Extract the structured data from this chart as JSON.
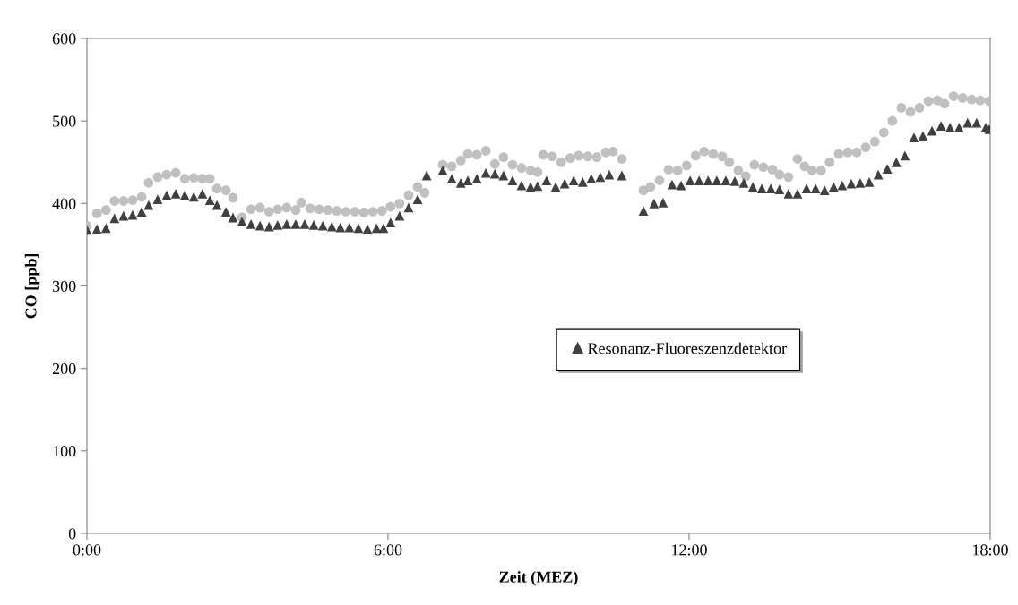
{
  "chart_data": {
    "type": "scatter",
    "xlabel": "Zeit (MEZ)",
    "ylabel": "CO [ppb]",
    "xlim": [
      0,
      18
    ],
    "xticks": [
      {
        "value": 0,
        "label": "0:00"
      },
      {
        "value": 6,
        "label": "6:00"
      },
      {
        "value": 12,
        "label": "12:00"
      },
      {
        "value": 18,
        "label": "18:00"
      }
    ],
    "ylim": [
      0,
      600
    ],
    "yticks": [
      0,
      100,
      200,
      300,
      400,
      500,
      600
    ],
    "grid": false,
    "legend": "center",
    "series": [
      {
        "color": "#c0c0c0",
        "marker": "circle",
        "x": [
          0,
          0.2,
          0.38,
          0.55,
          0.73,
          0.91,
          1.09,
          1.23,
          1.41,
          1.59,
          1.77,
          1.95,
          2.13,
          2.3,
          2.45,
          2.59,
          2.77,
          2.91,
          3.09,
          3.27,
          3.45,
          3.63,
          3.8,
          3.98,
          4.16,
          4.27,
          4.45,
          4.63,
          4.8,
          4.98,
          5.16,
          5.34,
          5.52,
          5.7,
          5.88,
          6.05,
          6.23,
          6.41,
          6.59,
          6.73,
          7.09,
          7.27,
          7.45,
          7.59,
          7.77,
          7.95,
          8.13,
          8.3,
          8.48,
          8.66,
          8.84,
          8.98,
          9.09,
          9.27,
          9.45,
          9.63,
          9.8,
          9.98,
          10.16,
          10.34,
          10.48,
          10.66,
          11.09,
          11.23,
          11.41,
          11.59,
          11.77,
          11.95,
          12.13,
          12.3,
          12.48,
          12.66,
          12.8,
          12.98,
          13.13,
          13.3,
          13.48,
          13.66,
          13.8,
          13.98,
          14.16,
          14.3,
          14.45,
          14.63,
          14.8,
          14.98,
          15.16,
          15.34,
          15.52,
          15.7,
          15.88,
          16.05,
          16.23,
          16.41,
          16.59,
          16.77,
          16.95,
          17.09,
          17.27,
          17.45,
          17.63,
          17.8,
          17.98
        ],
        "values": [
          373,
          388,
          392,
          403,
          403,
          404,
          408,
          425,
          432,
          435,
          437,
          430,
          431,
          430,
          430,
          418,
          416,
          407,
          383,
          393,
          395,
          390,
          393,
          395,
          392,
          401,
          394,
          393,
          392,
          391,
          390,
          390,
          389,
          390,
          391,
          396,
          400,
          410,
          420,
          413,
          447,
          445,
          452,
          460,
          459,
          464,
          448,
          456,
          447,
          443,
          440,
          438,
          459,
          457,
          450,
          455,
          458,
          457,
          456,
          462,
          463,
          454,
          416,
          420,
          428,
          441,
          440,
          446,
          458,
          463,
          460,
          457,
          450,
          440,
          433,
          447,
          444,
          441,
          435,
          432,
          454,
          445,
          440,
          440,
          450,
          460,
          462,
          462,
          468,
          475,
          486,
          500,
          516,
          511,
          516,
          524,
          525,
          521,
          530,
          528,
          526,
          525,
          524
        ]
      },
      {
        "name": "Resonanz-Fluoreszenzdetektor",
        "color": "#404040",
        "marker": "triangle",
        "x": [
          0,
          0.2,
          0.38,
          0.55,
          0.73,
          0.91,
          1.09,
          1.23,
          1.41,
          1.59,
          1.77,
          1.95,
          2.13,
          2.3,
          2.45,
          2.59,
          2.77,
          2.91,
          3.09,
          3.27,
          3.45,
          3.63,
          3.8,
          3.98,
          4.16,
          4.34,
          4.52,
          4.7,
          4.88,
          5.05,
          5.23,
          5.41,
          5.59,
          5.77,
          5.91,
          6.05,
          6.23,
          6.41,
          6.59,
          6.77,
          7.09,
          7.27,
          7.45,
          7.59,
          7.77,
          7.95,
          8.13,
          8.3,
          8.48,
          8.66,
          8.84,
          8.98,
          9.16,
          9.34,
          9.52,
          9.7,
          9.88,
          10.05,
          10.23,
          10.41,
          10.66,
          11.09,
          11.3,
          11.48,
          11.66,
          11.84,
          12.02,
          12.2,
          12.38,
          12.55,
          12.73,
          12.91,
          13.09,
          13.27,
          13.45,
          13.63,
          13.8,
          13.98,
          14.16,
          14.34,
          14.52,
          14.7,
          14.88,
          15.05,
          15.23,
          15.41,
          15.59,
          15.77,
          15.95,
          16.13,
          16.3,
          16.48,
          16.66,
          16.84,
          17.02,
          17.2,
          17.38,
          17.55,
          17.73,
          17.91,
          17.98
        ],
        "values": [
          368,
          369,
          370,
          382,
          385,
          386,
          390,
          398,
          405,
          410,
          412,
          410,
          408,
          412,
          404,
          398,
          390,
          383,
          378,
          375,
          373,
          372,
          374,
          375,
          375,
          375,
          374,
          373,
          372,
          371,
          371,
          370,
          369,
          370,
          370,
          377,
          385,
          395,
          405,
          434,
          440,
          430,
          425,
          428,
          430,
          437,
          436,
          434,
          428,
          422,
          420,
          421,
          428,
          420,
          424,
          428,
          426,
          430,
          432,
          435,
          434,
          391,
          400,
          401,
          423,
          422,
          428,
          428,
          428,
          428,
          428,
          427,
          425,
          420,
          418,
          418,
          417,
          412,
          412,
          418,
          418,
          416,
          420,
          422,
          424,
          425,
          426,
          435,
          442,
          450,
          458,
          480,
          482,
          488,
          494,
          492,
          492,
          498,
          498,
          492,
          490
        ]
      }
    ]
  }
}
